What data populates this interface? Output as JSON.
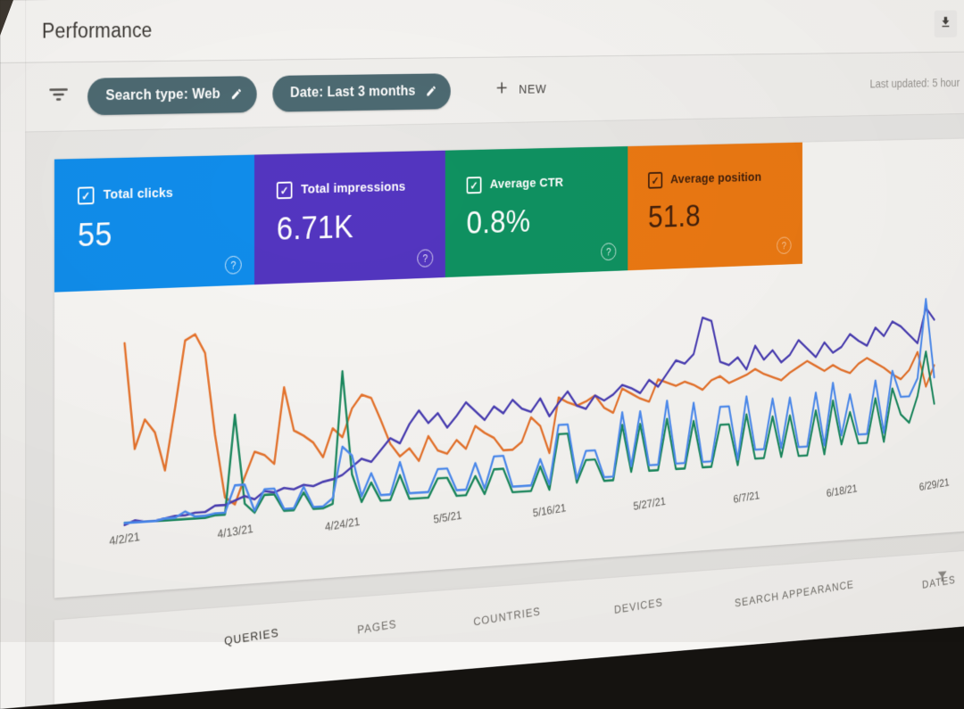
{
  "header": {
    "title": "Performance"
  },
  "toolbar": {
    "chips": [
      {
        "label": "Search type: Web"
      },
      {
        "label": "Date: Last 3 months"
      }
    ],
    "new_label": "NEW",
    "last_updated": "Last updated: 5 hour"
  },
  "metrics": [
    {
      "label": "Total clicks",
      "value": "55",
      "bg": "#108dec",
      "fg": "#ffffff"
    },
    {
      "label": "Total impressions",
      "value": "6.71K",
      "bg": "#5335c1",
      "fg": "#ffffff"
    },
    {
      "label": "Average CTR",
      "value": "0.8%",
      "bg": "#0f9261",
      "fg": "#ffffff"
    },
    {
      "label": "Average position",
      "value": "51.8",
      "bg": "#ec7912",
      "fg": "#44200b"
    }
  ],
  "chart_data": {
    "type": "line",
    "title": "",
    "xlabel": "",
    "ylabel": "",
    "grid": "off",
    "legend": "none",
    "x_tick_labels": [
      "4/2/21",
      "4/13/21",
      "4/24/21",
      "5/5/21",
      "5/16/21",
      "5/27/21",
      "6/7/21",
      "6/18/21",
      "6/29/21"
    ],
    "x_tick_interval_days": 11,
    "x_range_days": 89,
    "values_unit": "percent of plot height; y axis is unlabeled in the UI (each series has its own hidden scale)",
    "series": [
      {
        "name": "Total clicks",
        "color": "#4e8df2",
        "values": [
          2,
          2,
          2,
          2,
          3,
          3,
          6,
          3,
          3,
          4,
          4,
          18,
          18,
          4,
          15,
          15,
          4,
          4,
          15,
          4,
          4,
          8,
          35,
          30,
          8,
          20,
          8,
          8,
          25,
          8,
          8,
          8,
          20,
          20,
          8,
          8,
          22,
          8,
          25,
          25,
          8,
          8,
          8,
          22,
          8,
          40,
          40,
          10,
          25,
          25,
          10,
          10,
          45,
          15,
          45,
          15,
          15,
          50,
          15,
          15,
          48,
          15,
          15,
          45,
          45,
          15,
          50,
          20,
          20,
          48,
          20,
          48,
          20,
          20,
          50,
          20,
          55,
          25,
          48,
          25,
          25,
          55,
          25,
          60,
          45,
          45,
          55,
          100,
          55
        ]
      },
      {
        "name": "Total impressions",
        "color": "#4b3fb5",
        "values": [
          1,
          3,
          2,
          2,
          3,
          4,
          4,
          5,
          5,
          8,
          8,
          10,
          12,
          10,
          14,
          13,
          15,
          14,
          16,
          15,
          17,
          18,
          20,
          24,
          28,
          26,
          32,
          38,
          35,
          45,
          52,
          45,
          50,
          42,
          48,
          55,
          50,
          45,
          52,
          48,
          55,
          50,
          48,
          55,
          45,
          52,
          58,
          50,
          48,
          55,
          52,
          55,
          60,
          58,
          55,
          62,
          58,
          65,
          72,
          70,
          75,
          95,
          93,
          70,
          68,
          72,
          65,
          78,
          70,
          75,
          68,
          72,
          80,
          75,
          70,
          78,
          72,
          75,
          82,
          78,
          75,
          85,
          80,
          88,
          85,
          80,
          75,
          95,
          88
        ]
      },
      {
        "name": "Average CTR",
        "color": "#1b8a5f",
        "values": [
          2,
          2,
          2,
          2,
          2,
          2,
          2,
          2,
          2,
          3,
          3,
          55,
          8,
          3,
          12,
          12,
          3,
          3,
          12,
          3,
          3,
          5,
          75,
          20,
          5,
          15,
          5,
          5,
          18,
          5,
          5,
          5,
          15,
          15,
          5,
          5,
          15,
          5,
          18,
          18,
          5,
          5,
          5,
          18,
          5,
          35,
          35,
          8,
          20,
          20,
          8,
          8,
          38,
          12,
          38,
          12,
          12,
          40,
          12,
          12,
          38,
          12,
          12,
          35,
          35,
          12,
          40,
          15,
          15,
          38,
          15,
          38,
          15,
          15,
          40,
          15,
          45,
          20,
          38,
          20,
          20,
          45,
          20,
          50,
          35,
          30,
          45,
          70,
          40
        ]
      },
      {
        "name": "Average position",
        "color": "#e8752e",
        "values": [
          95,
          40,
          55,
          48,
          28,
          60,
          95,
          98,
          88,
          45,
          12,
          8,
          22,
          35,
          33,
          28,
          68,
          45,
          42,
          38,
          30,
          45,
          40,
          55,
          62,
          60,
          48,
          35,
          28,
          32,
          25,
          38,
          30,
          28,
          35,
          30,
          42,
          38,
          35,
          28,
          28,
          32,
          45,
          40,
          25,
          55,
          52,
          50,
          52,
          55,
          48,
          45,
          58,
          55,
          52,
          50,
          62,
          60,
          58,
          60,
          58,
          55,
          60,
          62,
          58,
          60,
          62,
          65,
          62,
          60,
          58,
          62,
          65,
          68,
          65,
          62,
          65,
          62,
          60,
          65,
          68,
          65,
          62,
          58,
          55,
          60,
          70,
          50,
          62
        ]
      }
    ]
  },
  "tabs": {
    "items": [
      "QUERIES",
      "PAGES",
      "COUNTRIES",
      "DEVICES",
      "SEARCH APPEARANCE",
      "DATES"
    ],
    "selected": "QUERIES"
  }
}
